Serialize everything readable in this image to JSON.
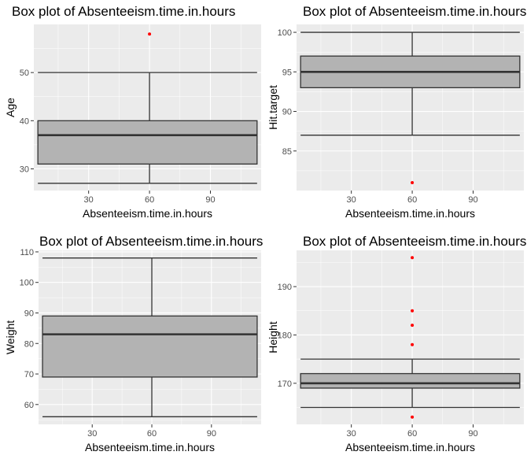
{
  "chart_data": [
    {
      "type": "box",
      "title": "Box plot of Absenteeism.time.in.hours",
      "xlabel": "Absenteeism.time.in.hours",
      "ylabel": "Age",
      "xlim": [
        3,
        115
      ],
      "ylim": [
        25.5,
        60
      ],
      "x_ticks": [
        30,
        60,
        90
      ],
      "y_ticks": [
        30,
        40,
        50
      ],
      "grid": true,
      "box": {
        "x_min": 5,
        "x_max": 113,
        "center_x": 60,
        "whisker_low": 27,
        "q1": 31,
        "median": 37,
        "q3": 40,
        "whisker_high": 50,
        "outliers": [
          58
        ]
      }
    },
    {
      "type": "box",
      "title": "Box plot of Absenteeism.time.in.hours",
      "xlabel": "Absenteeism.time.in.hours",
      "ylabel": "Hit.target",
      "xlim": [
        3,
        115
      ],
      "ylim": [
        80,
        101
      ],
      "x_ticks": [
        30,
        60,
        90
      ],
      "y_ticks": [
        85,
        90,
        95,
        100
      ],
      "grid": true,
      "box": {
        "x_min": 5,
        "x_max": 113,
        "center_x": 60,
        "whisker_low": 87,
        "q1": 93,
        "median": 95,
        "q3": 97,
        "whisker_high": 100,
        "outliers": [
          81
        ]
      }
    },
    {
      "type": "box",
      "title": "Box plot of Absenteeism.time.in.hours",
      "xlabel": "Absenteeism.time.in.hours",
      "ylabel": "Weight",
      "xlim": [
        3,
        115
      ],
      "ylim": [
        53.5,
        110.5
      ],
      "x_ticks": [
        30,
        60,
        90
      ],
      "y_ticks": [
        60,
        70,
        80,
        90,
        100,
        110
      ],
      "grid": true,
      "box": {
        "x_min": 5,
        "x_max": 113,
        "center_x": 60,
        "whisker_low": 56,
        "q1": 69,
        "median": 83,
        "q3": 89,
        "whisker_high": 108,
        "outliers": []
      }
    },
    {
      "type": "box",
      "title": "Box plot of Absenteeism.time.in.hours",
      "xlabel": "Absenteeism.time.in.hours",
      "ylabel": "Height",
      "xlim": [
        3,
        115
      ],
      "ylim": [
        161.5,
        197.5
      ],
      "x_ticks": [
        30,
        60,
        90
      ],
      "y_ticks": [
        170,
        180,
        190
      ],
      "grid": true,
      "box": {
        "x_min": 5,
        "x_max": 113,
        "center_x": 60,
        "whisker_low": 165,
        "q1": 169,
        "median": 170,
        "q3": 172,
        "whisker_high": 175,
        "outliers": [
          163,
          178,
          182,
          185,
          196
        ]
      }
    }
  ],
  "colors": {
    "panel_background": "#ebebeb",
    "grid_major": "#ffffff",
    "box_fill": "#b3b3b3",
    "box_line": "#333333",
    "outlier": "#ff0000",
    "tick_text": "#4d4d4d"
  }
}
